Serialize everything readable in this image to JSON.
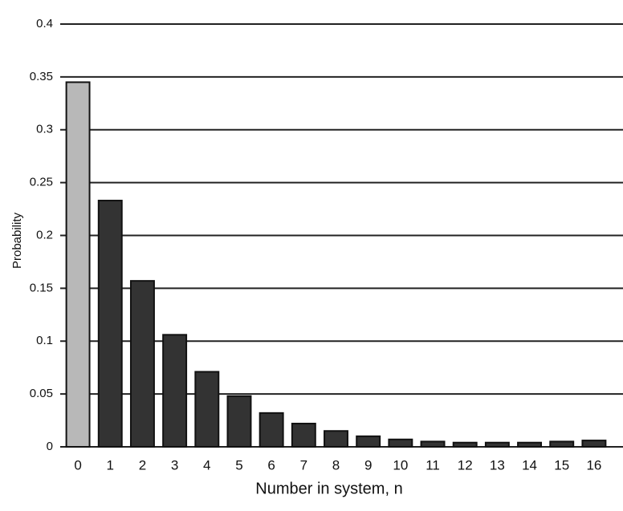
{
  "chart_data": {
    "type": "bar",
    "categories": [
      "0",
      "1",
      "2",
      "3",
      "4",
      "5",
      "6",
      "7",
      "8",
      "9",
      "10",
      "11",
      "12",
      "13",
      "14",
      "15",
      "16"
    ],
    "values": [
      0.345,
      0.233,
      0.157,
      0.106,
      0.071,
      0.048,
      0.032,
      0.022,
      0.015,
      0.01,
      0.007,
      0.005,
      0.004,
      0.004,
      0.004,
      0.005,
      0.006
    ],
    "colors": [
      "#b8b8b8",
      "#333333",
      "#333333",
      "#333333",
      "#333333",
      "#333333",
      "#333333",
      "#333333",
      "#333333",
      "#333333",
      "#333333",
      "#333333",
      "#333333",
      "#333333",
      "#333333",
      "#333333",
      "#333333"
    ],
    "ylabel": "Probability",
    "xlabel": "Number in system, n",
    "ylim": [
      0,
      0.4
    ],
    "yticks": [
      0,
      0.05,
      0.1,
      0.15,
      0.2,
      0.25,
      0.3,
      0.35,
      0.4
    ],
    "grid": true
  }
}
